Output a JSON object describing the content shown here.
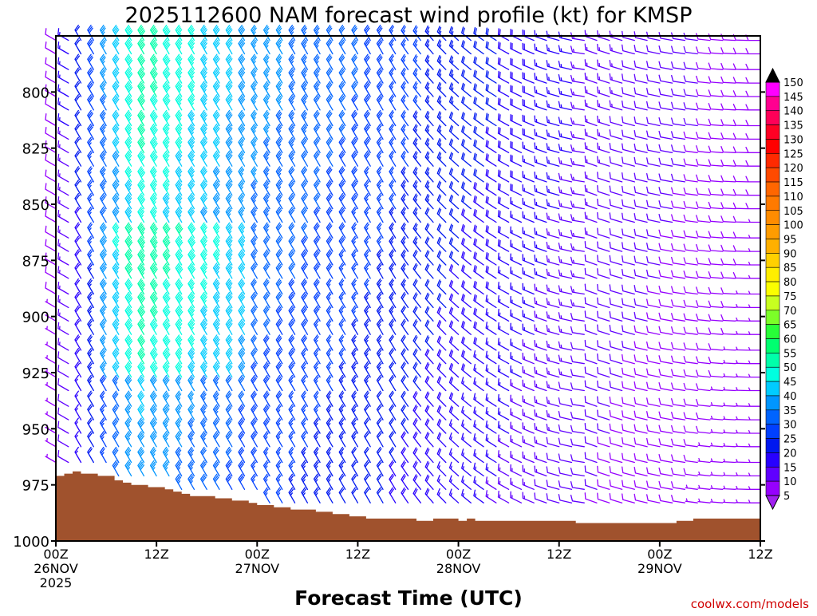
{
  "chart_data": {
    "type": "wind-barb-time-height",
    "title": "2025112600 NAM forecast wind profile (kt) for KMSP",
    "xlabel": "Forecast Time (UTC)",
    "ylabel": "",
    "credit": "coolwx.com/models",
    "x_range_hours": [
      0,
      84
    ],
    "y_range_hpa": [
      1000,
      775
    ],
    "y_ticks": [
      800,
      825,
      850,
      875,
      900,
      925,
      950,
      975,
      1000
    ],
    "x_ticks": [
      {
        "hour": 0,
        "lines": [
          "00Z",
          "26NOV",
          "2025"
        ]
      },
      {
        "hour": 12,
        "lines": [
          "12Z"
        ]
      },
      {
        "hour": 24,
        "lines": [
          "00Z",
          "27NOV"
        ]
      },
      {
        "hour": 36,
        "lines": [
          "12Z"
        ]
      },
      {
        "hour": 48,
        "lines": [
          "00Z",
          "28NOV"
        ]
      },
      {
        "hour": 60,
        "lines": [
          "12Z"
        ]
      },
      {
        "hour": 72,
        "lines": [
          "00Z",
          "29NOV"
        ]
      },
      {
        "hour": 84,
        "lines": [
          "12Z"
        ]
      }
    ],
    "colorbar": {
      "unit": "kt",
      "labels": [
        150,
        145,
        140,
        135,
        130,
        125,
        120,
        115,
        110,
        105,
        100,
        95,
        90,
        85,
        80,
        75,
        70,
        65,
        60,
        55,
        50,
        45,
        40,
        35,
        30,
        25,
        20,
        15,
        10,
        5
      ],
      "colors": [
        "#ff00ff",
        "#ff0090",
        "#ff0058",
        "#ff0024",
        "#ff0000",
        "#ff2a00",
        "#ff4a00",
        "#ff6600",
        "#ff7a00",
        "#ff8c00",
        "#ff9c00",
        "#ffb000",
        "#ffd000",
        "#ffee00",
        "#fbff00",
        "#c8ff20",
        "#7cff28",
        "#28ff38",
        "#00ff70",
        "#00ffaa",
        "#00ffe0",
        "#00ccff",
        "#0096ff",
        "#0064ff",
        "#0040ff",
        "#0018f0",
        "#2800ff",
        "#6000ff",
        "#9600ff"
      ],
      "top_color": "#000000",
      "bottom_color": "#a020f0"
    },
    "surface_pressure": {
      "hours": [
        0,
        1,
        2,
        3,
        4,
        5,
        6,
        7,
        8,
        9,
        10,
        11,
        12,
        13,
        14,
        15,
        16,
        17,
        18,
        19,
        20,
        21,
        22,
        23,
        24,
        25,
        26,
        27,
        28,
        30,
        31,
        32,
        33,
        34,
        35,
        36,
        37,
        38,
        39,
        40,
        41,
        42,
        43,
        44,
        45,
        46,
        47,
        48,
        49,
        50,
        51,
        52,
        54,
        56,
        58,
        60,
        62,
        64,
        66,
        68,
        70,
        72,
        74,
        76,
        78,
        80,
        82,
        84
      ],
      "hpa": [
        971,
        970,
        969,
        970,
        970,
        971,
        971,
        973,
        974,
        975,
        975,
        976,
        976,
        977,
        978,
        979,
        980,
        980,
        980,
        981,
        981,
        982,
        982,
        983,
        984,
        984,
        985,
        985,
        986,
        986,
        987,
        987,
        988,
        988,
        989,
        989,
        990,
        990,
        990,
        990,
        990,
        990,
        991,
        991,
        990,
        990,
        990,
        991,
        990,
        991,
        991,
        991,
        991,
        991,
        991,
        991,
        992,
        992,
        992,
        992,
        992,
        992,
        991,
        990,
        990,
        990,
        990,
        990
      ],
      "color": "#a0522d"
    },
    "barb_grid": {
      "hours": [
        0,
        1.5,
        3,
        4.5,
        6,
        7.5,
        9,
        10.5,
        12,
        13.5,
        15,
        16.5,
        18,
        19.5,
        21,
        22.5,
        24,
        25.5,
        27,
        28.5,
        30,
        31.5,
        33,
        34.5,
        36,
        37.5,
        39,
        40.5,
        42,
        43.5,
        45,
        46.5,
        48,
        49.5,
        51,
        52.5,
        54,
        55.5,
        57,
        58.5,
        60,
        61.5,
        63,
        64.5,
        66,
        67.5,
        69,
        70.5,
        72,
        73.5,
        75,
        76.5,
        78,
        79.5,
        81,
        82.5,
        84
      ],
      "levels_hpa": [
        777,
        783,
        790,
        796,
        802,
        808,
        815,
        821,
        827,
        833,
        840,
        846,
        852,
        858,
        865,
        871,
        877,
        883,
        890,
        896,
        902,
        908,
        915,
        921,
        927,
        933,
        940,
        946,
        952,
        958,
        965,
        971,
        977,
        983
      ]
    }
  }
}
